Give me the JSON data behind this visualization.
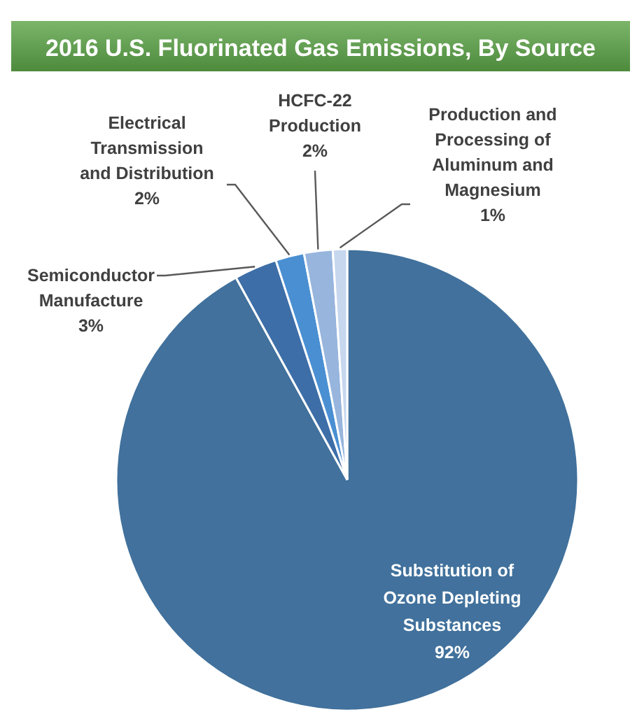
{
  "chart_data": {
    "type": "pie",
    "title": "2016 U.S. Fluorinated Gas Emissions, By Source",
    "categories": [
      "Substitution of Ozone Depleting Substances",
      "Semiconductor Manufacture",
      "Electrical Transmission and Distribution",
      "HCFC-22 Production",
      "Production and Processing of Aluminum and Magnesium"
    ],
    "values": [
      92,
      3,
      2,
      2,
      1
    ],
    "colors": [
      "#41719c",
      "#3d6ea8",
      "#4a8fd2",
      "#97b5dd",
      "#c6d7ee"
    ],
    "value_labels": [
      "92%",
      "3%",
      "2%",
      "2%",
      "1%"
    ]
  }
}
